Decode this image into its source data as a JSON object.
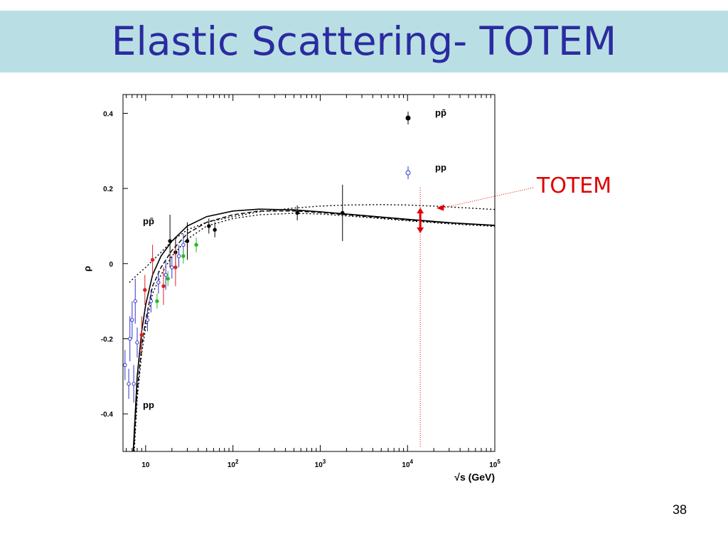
{
  "slide": {
    "title": "Elastic Scattering- TOTEM",
    "number": "38",
    "annotation": "TOTEM",
    "colors": {
      "title_band": "#b9dfe4",
      "title_text": "#2b2ba0",
      "annotation": "#e00000"
    }
  },
  "chart_data": {
    "type": "scatter",
    "title": "",
    "xlabel": "√s (GeV)",
    "ylabel": "ρ",
    "x_scale": "log",
    "xlim": [
      5.5,
      100000
    ],
    "ylim": [
      -0.5,
      0.45
    ],
    "x_ticks": [
      {
        "value": 10,
        "base": "10",
        "exp": ""
      },
      {
        "value": 100,
        "base": "10",
        "exp": "2"
      },
      {
        "value": 1000,
        "base": "10",
        "exp": "3"
      },
      {
        "value": 10000,
        "base": "10",
        "exp": "4"
      },
      {
        "value": 100000,
        "base": "10",
        "exp": "5"
      }
    ],
    "y_ticks": [
      "-0.4",
      "-0.2",
      "0",
      "0.2",
      "0.4"
    ],
    "legend": [
      {
        "label": "pp̄",
        "marker": "filled-circle",
        "color": "#000000"
      },
      {
        "label": "pp",
        "marker": "open-circle",
        "color": "#3333cc"
      }
    ],
    "curve_labels": [
      {
        "label": "pp̄",
        "x": 9.3,
        "y": 0.105
      },
      {
        "label": "pp",
        "x": 9.3,
        "y": -0.385
      }
    ],
    "curves": [
      {
        "style": "solid",
        "points": [
          [
            7.2,
            -0.5
          ],
          [
            8,
            -0.3
          ],
          [
            9,
            -0.18
          ],
          [
            10,
            -0.11
          ],
          [
            12,
            -0.03
          ],
          [
            15,
            0.02
          ],
          [
            20,
            0.06
          ],
          [
            30,
            0.1
          ],
          [
            50,
            0.125
          ],
          [
            100,
            0.14
          ],
          [
            200,
            0.145
          ],
          [
            500,
            0.143
          ],
          [
            1000,
            0.138
          ],
          [
            2000,
            0.132
          ],
          [
            5000,
            0.124
          ],
          [
            10000,
            0.118
          ],
          [
            30000,
            0.109
          ],
          [
            100000,
            0.102
          ]
        ]
      },
      {
        "style": "dashed",
        "points": [
          [
            7.3,
            -0.5
          ],
          [
            8,
            -0.34
          ],
          [
            9,
            -0.22
          ],
          [
            10,
            -0.15
          ],
          [
            12,
            -0.06
          ],
          [
            15,
            -0.01
          ],
          [
            20,
            0.035
          ],
          [
            30,
            0.08
          ],
          [
            50,
            0.11
          ],
          [
            100,
            0.13
          ],
          [
            200,
            0.14
          ],
          [
            500,
            0.14
          ],
          [
            1000,
            0.136
          ],
          [
            2000,
            0.13
          ],
          [
            5000,
            0.122
          ],
          [
            10000,
            0.116
          ],
          [
            30000,
            0.108
          ],
          [
            100000,
            0.101
          ]
        ]
      },
      {
        "style": "dotted",
        "points": [
          [
            7.4,
            -0.5
          ],
          [
            8,
            -0.36
          ],
          [
            9,
            -0.24
          ],
          [
            10,
            -0.17
          ],
          [
            12,
            -0.08
          ],
          [
            15,
            -0.03
          ],
          [
            20,
            0.02
          ],
          [
            30,
            0.065
          ],
          [
            50,
            0.1
          ],
          [
            100,
            0.12
          ],
          [
            200,
            0.13
          ],
          [
            500,
            0.134
          ],
          [
            1000,
            0.132
          ],
          [
            2000,
            0.127
          ],
          [
            5000,
            0.12
          ],
          [
            10000,
            0.114
          ],
          [
            30000,
            0.106
          ],
          [
            100000,
            0.099
          ]
        ]
      },
      {
        "style": "dotted",
        "points": [
          [
            6.5,
            -0.05
          ],
          [
            8,
            -0.03
          ],
          [
            10,
            -0.01
          ],
          [
            15,
            0.03
          ],
          [
            20,
            0.06
          ],
          [
            30,
            0.09
          ],
          [
            50,
            0.11
          ],
          [
            100,
            0.125
          ],
          [
            200,
            0.138
          ],
          [
            500,
            0.148
          ],
          [
            1000,
            0.153
          ],
          [
            2000,
            0.156
          ],
          [
            5000,
            0.157
          ],
          [
            10000,
            0.156
          ],
          [
            20000,
            0.153
          ],
          [
            50000,
            0.148
          ],
          [
            100000,
            0.144
          ]
        ]
      }
    ],
    "series": [
      {
        "name": "pp̄",
        "marker": "filled-circle",
        "color": "#000000",
        "points": [
          {
            "x": 19,
            "y": 0.06,
            "err": 0.07
          },
          {
            "x": 22,
            "y": 0.03,
            "err": 0.04
          },
          {
            "x": 30,
            "y": 0.06,
            "err": 0.05
          },
          {
            "x": 53,
            "y": 0.1,
            "err": 0.02
          },
          {
            "x": 62,
            "y": 0.09,
            "err": 0.02
          },
          {
            "x": 546,
            "y": 0.135,
            "err": 0.02
          },
          {
            "x": 1800,
            "y": 0.135,
            "err": 0.075
          }
        ]
      },
      {
        "name": "pp",
        "marker": "open-circle",
        "color": "#3333cc",
        "points": [
          {
            "x": 5.8,
            "y": -0.27,
            "err": 0.04
          },
          {
            "x": 6.4,
            "y": -0.32,
            "err": 0.04
          },
          {
            "x": 6.6,
            "y": -0.2,
            "err": 0.06
          },
          {
            "x": 7.0,
            "y": -0.15,
            "err": 0.05
          },
          {
            "x": 7.3,
            "y": -0.32,
            "err": 0.05
          },
          {
            "x": 7.6,
            "y": -0.1,
            "err": 0.06
          },
          {
            "x": 8.0,
            "y": -0.21,
            "err": 0.04
          },
          {
            "x": 10.5,
            "y": -0.15,
            "err": 0.03
          },
          {
            "x": 11.5,
            "y": -0.1,
            "err": 0.03
          },
          {
            "x": 14,
            "y": -0.05,
            "err": 0.03
          },
          {
            "x": 17,
            "y": -0.03,
            "err": 0.04
          },
          {
            "x": 20,
            "y": -0.01,
            "err": 0.03
          },
          {
            "x": 24,
            "y": 0.02,
            "err": 0.03
          },
          {
            "x": 27,
            "y": 0.05,
            "err": 0.03
          }
        ]
      },
      {
        "name": "",
        "marker": "filled-circle",
        "color": "#dd2222",
        "points": [
          {
            "x": 9.0,
            "y": -0.19,
            "err": 0.05
          },
          {
            "x": 9.8,
            "y": -0.07,
            "err": 0.04
          },
          {
            "x": 12,
            "y": 0.01,
            "err": 0.04
          },
          {
            "x": 16,
            "y": -0.06,
            "err": 0.05
          },
          {
            "x": 22,
            "y": -0.01,
            "err": 0.05
          }
        ]
      },
      {
        "name": "",
        "marker": "filled-circle",
        "color": "#22bb22",
        "points": [
          {
            "x": 13.5,
            "y": -0.1,
            "err": 0.02
          },
          {
            "x": 18,
            "y": -0.04,
            "err": 0.02
          },
          {
            "x": 27,
            "y": 0.02,
            "err": 0.02
          },
          {
            "x": 38,
            "y": 0.05,
            "err": 0.02
          }
        ]
      }
    ],
    "totem_marker": {
      "x": 14000,
      "y_low": 0.085,
      "y_high": 0.145,
      "label_target_y": 0.148
    }
  }
}
